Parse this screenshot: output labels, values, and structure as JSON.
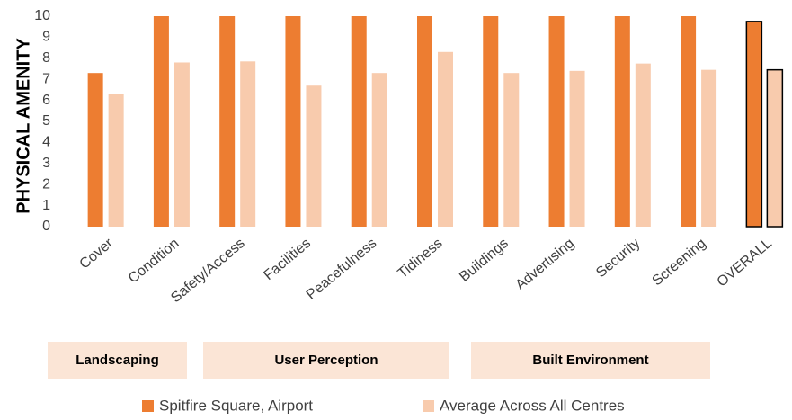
{
  "chart_data": {
    "type": "bar",
    "y_label": "PHYSICAL AMENITY",
    "categories": [
      "Cover",
      "Condition",
      "Safety/Access",
      "Facilities",
      "Peacefulness",
      "Tidiness",
      "Buildings",
      "Advertising",
      "Security",
      "Screening",
      "OVERALL"
    ],
    "series": [
      {
        "name": "Spitfire Square, Airport",
        "color": "#ed7d31",
        "values": [
          7.3,
          10,
          10,
          10,
          10,
          10,
          10,
          10,
          10,
          10,
          9.75
        ]
      },
      {
        "name": "Average Across All Centres",
        "color": "#f8cbad",
        "values": [
          6.3,
          7.8,
          7.85,
          6.7,
          7.3,
          8.3,
          7.3,
          7.4,
          7.75,
          7.45,
          7.45
        ]
      }
    ],
    "groups": [
      "Landscaping",
      "User Perception",
      "Built Environment"
    ],
    "group_color": "#fbe5d6",
    "ylim": [
      0,
      10
    ],
    "yticks": [
      0,
      1,
      2,
      3,
      4,
      5,
      6,
      7,
      8,
      9,
      10
    ],
    "legend": "bottom"
  }
}
